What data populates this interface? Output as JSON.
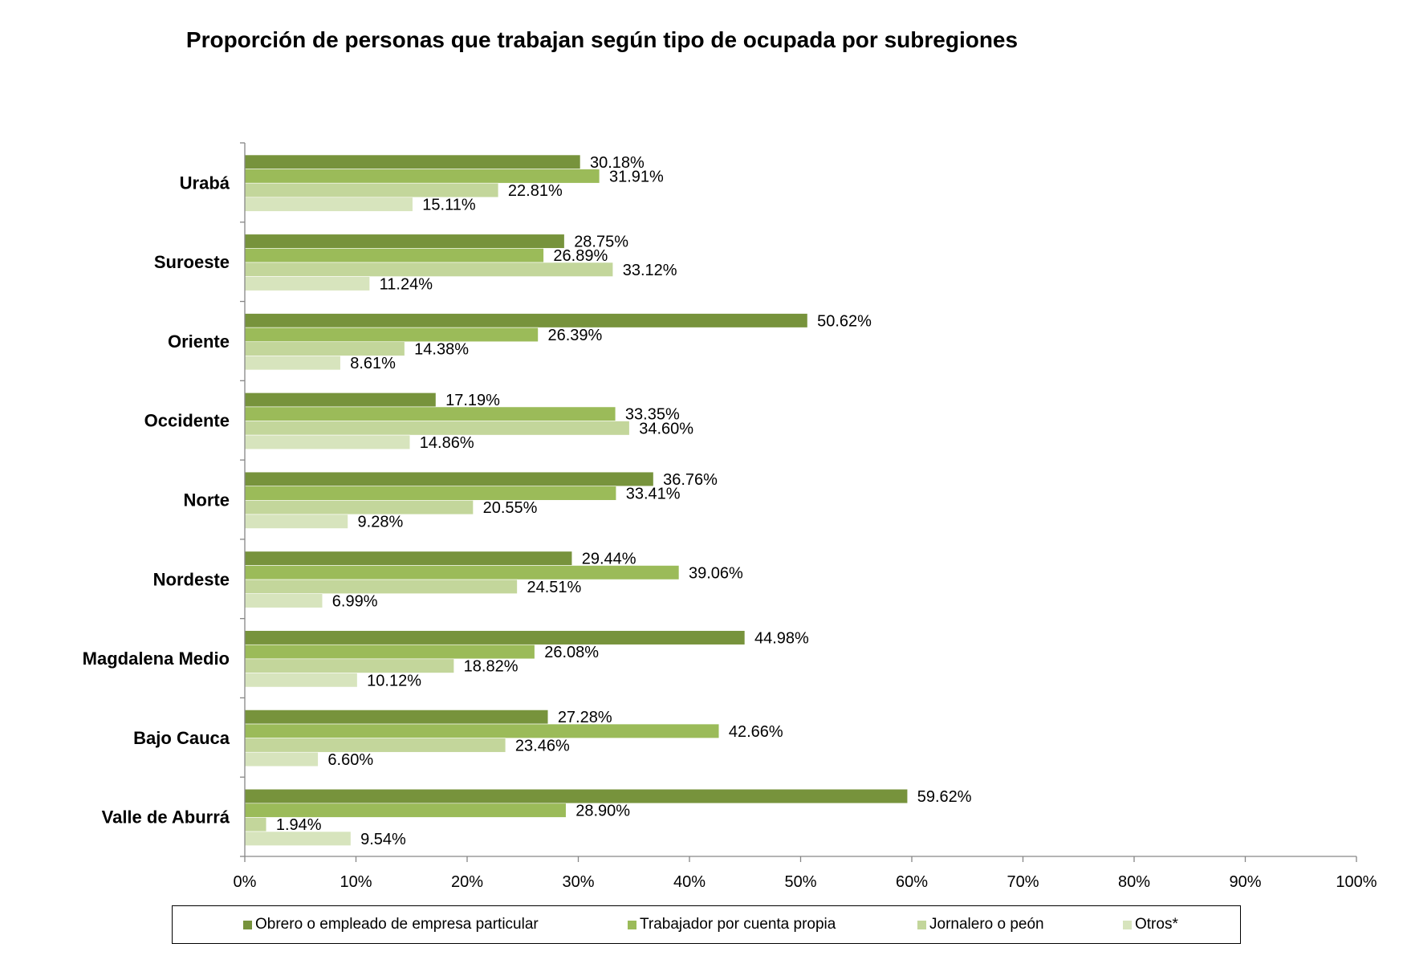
{
  "chart_data": {
    "type": "bar",
    "orientation": "horizontal",
    "title": "Proporción de personas que trabajan según tipo de ocupada  por subregiones",
    "categories": [
      "Urabá",
      "Suroeste",
      "Oriente",
      "Occidente",
      "Norte",
      "Nordeste",
      "Magdalena Medio",
      "Bajo Cauca",
      "Valle de Aburrá"
    ],
    "series": [
      {
        "name": "Obrero o empleado de empresa particular",
        "color": "#77933c",
        "values": [
          30.18,
          28.75,
          50.62,
          17.19,
          36.76,
          29.44,
          44.98,
          27.28,
          59.62
        ],
        "labels": [
          "30.18%",
          "28.75%",
          "50.62%",
          "17.19%",
          "36.76%",
          "29.44%",
          "44.98%",
          "27.28%",
          "59.62%"
        ]
      },
      {
        "name": "Trabajador por cuenta propia",
        "color": "#9bbb59",
        "values": [
          31.91,
          26.89,
          26.39,
          33.35,
          33.41,
          39.06,
          26.08,
          42.66,
          28.9
        ],
        "labels": [
          "31.91%",
          "26.89%",
          "26.39%",
          "33.35%",
          "33.41%",
          "39.06%",
          "26.08%",
          "42.66%",
          "28.90%"
        ]
      },
      {
        "name": "Jornalero o peón",
        "color": "#c3d69b",
        "values": [
          22.81,
          33.12,
          14.38,
          34.6,
          20.55,
          24.51,
          18.82,
          23.46,
          1.94
        ],
        "labels": [
          "22.81%",
          "33.12%",
          "14.38%",
          "34.60%",
          "20.55%",
          "24.51%",
          "18.82%",
          "23.46%",
          "1.94%"
        ]
      },
      {
        "name": "Otros*",
        "color": "#d7e4bd",
        "values": [
          15.11,
          11.24,
          8.61,
          14.86,
          9.28,
          6.99,
          10.12,
          6.6,
          9.54
        ],
        "labels": [
          "15.11%",
          "11.24%",
          "8.61%",
          "14.86%",
          "9.28%",
          "6.99%",
          "10.12%",
          "6.60%",
          "9.54%"
        ]
      }
    ],
    "xlim": [
      0,
      100
    ],
    "x_ticks": [
      "0%",
      "10%",
      "20%",
      "30%",
      "40%",
      "50%",
      "60%",
      "70%",
      "80%",
      "90%",
      "100%"
    ],
    "grid": false,
    "legend_position": "bottom"
  }
}
